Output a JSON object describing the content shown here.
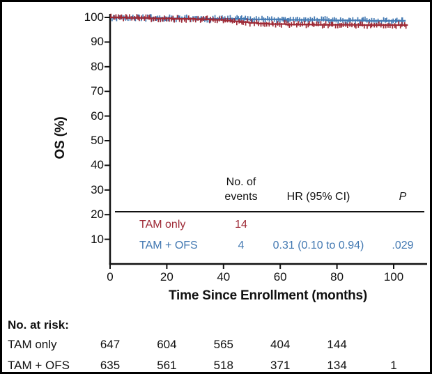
{
  "chart_data": {
    "type": "line",
    "subtype": "kaplan-meier-step",
    "title": "",
    "xlabel": "Time Since Enrollment (months)",
    "ylabel": "OS (%)",
    "x_ticks": [
      0,
      20,
      40,
      60,
      80,
      100
    ],
    "y_ticks": [
      100,
      90,
      80,
      70,
      60,
      50,
      40,
      30,
      20,
      10
    ],
    "xlim": [
      0,
      112
    ],
    "ylim": [
      0,
      100
    ],
    "grid": false,
    "series": [
      {
        "name": "TAM only",
        "color": "#9e2a36",
        "steps": [
          [
            0,
            100
          ],
          [
            6,
            99.8
          ],
          [
            14,
            99.6
          ],
          [
            22,
            99.4
          ],
          [
            30,
            99.2
          ],
          [
            36,
            99.0
          ],
          [
            40,
            98.7
          ],
          [
            43,
            98.4
          ],
          [
            46,
            98.1
          ],
          [
            49,
            97.8
          ],
          [
            52,
            97.5
          ],
          [
            56,
            97.3
          ],
          [
            62,
            97.1
          ],
          [
            72,
            97.0
          ],
          [
            88,
            96.9
          ]
        ],
        "end": 105,
        "censored_marks": true,
        "terminal_plus": false
      },
      {
        "name": "TAM + OFS",
        "color": "#4379b2",
        "steps": [
          [
            0,
            100
          ],
          [
            5,
            99.8
          ],
          [
            18,
            99.6
          ],
          [
            32,
            99.4
          ],
          [
            48,
            99.2
          ],
          [
            62,
            99.0
          ],
          [
            76,
            98.8
          ],
          [
            90,
            98.6
          ]
        ],
        "end": 103,
        "censored_marks": true,
        "terminal_plus": true
      }
    ],
    "inset": {
      "headers": {
        "events_line1": "No. of",
        "events_line2": "events",
        "hr": "HR (95% CI)",
        "p": "P"
      },
      "rows": [
        {
          "label": "TAM only",
          "events": "14",
          "hr": "",
          "p": ""
        },
        {
          "label": "TAM + OFS",
          "events": "4",
          "hr": "0.31 (0.10 to 0.94)",
          "p": ".029"
        }
      ]
    }
  },
  "at_risk": {
    "title": "No. at risk:",
    "rows": [
      {
        "label": "TAM only",
        "counts": [
          "647",
          "604",
          "565",
          "404",
          "144",
          ""
        ]
      },
      {
        "label": "TAM + OFS",
        "counts": [
          "635",
          "561",
          "518",
          "371",
          "134",
          "1"
        ]
      }
    ]
  },
  "colors": {
    "tam_only": "#9e2a36",
    "tam_ofs": "#4379b2",
    "axis": "#111111"
  }
}
